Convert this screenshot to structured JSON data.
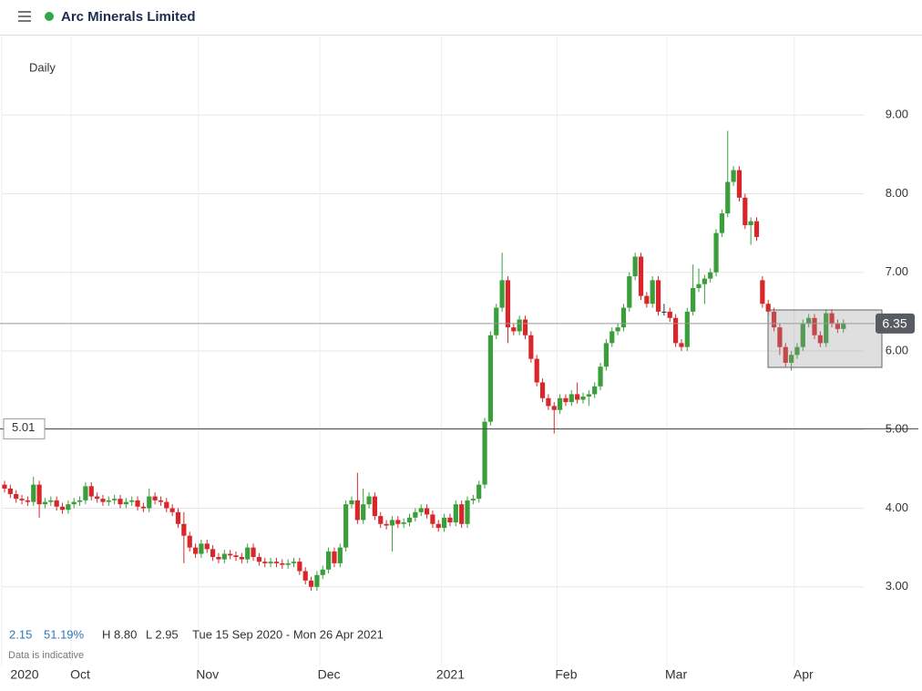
{
  "header": {
    "title": "Arc Minerals Limited"
  },
  "chart_data": {
    "type": "candlestick",
    "interval": "Daily",
    "up_color": "#3a9e3a",
    "down_color": "#d9262b",
    "grid": true,
    "ylim": [
      2.0,
      10.0
    ],
    "yticks": [
      {
        "value": 3,
        "label": "3.00"
      },
      {
        "value": 4,
        "label": "4.00"
      },
      {
        "value": 5,
        "label": "5.00"
      },
      {
        "value": 6,
        "label": "6.00"
      },
      {
        "value": 7,
        "label": "7.00"
      },
      {
        "value": 8,
        "label": "8.00"
      },
      {
        "value": 9,
        "label": "9.00"
      }
    ],
    "xticks": [
      {
        "value": 0,
        "label": "2020"
      },
      {
        "value": 12,
        "label": "Oct"
      },
      {
        "value": 34,
        "label": "Nov"
      },
      {
        "value": 55,
        "label": "Dec"
      },
      {
        "value": 76,
        "label": "2021"
      },
      {
        "value": 96,
        "label": "Feb"
      },
      {
        "value": 115,
        "label": "Mar"
      },
      {
        "value": 137,
        "label": "Apr"
      }
    ],
    "last_price": 6.35,
    "hline": 5.01,
    "open": [
      4.3,
      4.25,
      4.18,
      4.12,
      4.1,
      4.08,
      4.3,
      4.05,
      4.08,
      4.1,
      4.02,
      3.98,
      4.05,
      4.08,
      4.1,
      4.28,
      4.15,
      4.12,
      4.08,
      4.1,
      4.12,
      4.05,
      4.08,
      4.1,
      4.02,
      4.0,
      4.15,
      4.1,
      4.08,
      4.0,
      3.95,
      3.8,
      3.65,
      3.5,
      3.42,
      3.55,
      3.48,
      3.38,
      3.35,
      3.42,
      3.4,
      3.38,
      3.35,
      3.5,
      3.38,
      3.32,
      3.3,
      3.32,
      3.3,
      3.28,
      3.3,
      3.32,
      3.2,
      3.08,
      3.0,
      3.15,
      3.22,
      3.45,
      3.3,
      3.5,
      4.05,
      4.1,
      3.85,
      4.05,
      4.15,
      3.9,
      3.8,
      3.78,
      3.85,
      3.8,
      3.82,
      3.88,
      3.95,
      4.0,
      3.92,
      3.8,
      3.75,
      3.88,
      3.82,
      4.05,
      3.8,
      4.1,
      4.12,
      4.3,
      5.1,
      6.2,
      6.55,
      6.9,
      6.3,
      6.25,
      6.4,
      6.2,
      5.9,
      5.6,
      5.4,
      5.3,
      5.25,
      5.4,
      5.35,
      5.45,
      5.38,
      5.42,
      5.45,
      5.55,
      5.8,
      6.1,
      6.25,
      6.3,
      6.55,
      6.95,
      7.2,
      6.7,
      6.6,
      6.9,
      6.5,
      6.5,
      6.42,
      6.1,
      6.05,
      6.5,
      6.8,
      6.85,
      6.92,
      7.0,
      7.5,
      7.75,
      8.15,
      8.3,
      7.95,
      7.6,
      7.65,
      6.9,
      6.6,
      6.5,
      6.3,
      6.05,
      5.85,
      5.95,
      6.05,
      6.35,
      6.42,
      6.2,
      6.1,
      6.48,
      6.35,
      6.28
    ],
    "high": [
      4.35,
      4.3,
      4.23,
      4.17,
      4.15,
      4.4,
      4.35,
      4.13,
      4.15,
      4.15,
      4.07,
      4.1,
      4.13,
      4.15,
      4.33,
      4.33,
      4.2,
      4.17,
      4.15,
      4.17,
      4.17,
      4.13,
      4.15,
      4.15,
      4.07,
      4.25,
      4.2,
      4.15,
      4.13,
      4.05,
      4.0,
      3.95,
      3.7,
      3.55,
      3.6,
      3.6,
      3.53,
      3.43,
      3.47,
      3.47,
      3.45,
      3.43,
      3.55,
      3.55,
      3.43,
      3.37,
      3.37,
      3.37,
      3.35,
      3.35,
      3.37,
      3.37,
      3.25,
      3.13,
      3.2,
      3.27,
      3.5,
      3.5,
      3.55,
      4.1,
      4.15,
      4.45,
      4.25,
      4.2,
      4.2,
      3.95,
      3.85,
      3.9,
      3.9,
      3.87,
      3.93,
      4.0,
      4.05,
      4.05,
      3.97,
      3.85,
      3.93,
      3.93,
      4.1,
      4.1,
      4.15,
      4.17,
      4.35,
      5.15,
      6.25,
      6.6,
      7.25,
      6.95,
      6.35,
      6.45,
      6.45,
      6.25,
      5.95,
      5.65,
      5.45,
      5.35,
      5.45,
      5.45,
      5.5,
      5.6,
      5.47,
      5.5,
      5.6,
      5.85,
      6.15,
      6.3,
      6.35,
      6.6,
      7.0,
      7.25,
      7.25,
      6.75,
      6.95,
      6.95,
      6.6,
      6.55,
      6.47,
      6.15,
      6.55,
      7.1,
      7.05,
      6.97,
      7.05,
      7.55,
      7.8,
      8.8,
      8.35,
      8.35,
      8.0,
      7.7,
      7.7,
      6.95,
      6.65,
      6.55,
      6.35,
      6.1,
      6.0,
      6.1,
      6.4,
      6.47,
      6.47,
      6.25,
      6.53,
      6.53,
      6.4,
      6.4
    ],
    "low": [
      4.2,
      4.13,
      4.07,
      4.05,
      4.03,
      4.03,
      3.88,
      4.0,
      4.03,
      3.97,
      3.93,
      3.93,
      4.0,
      4.03,
      4.05,
      4.1,
      4.07,
      4.03,
      4.03,
      4.05,
      4.0,
      4.0,
      4.03,
      3.97,
      3.95,
      3.95,
      4.05,
      4.03,
      3.95,
      3.9,
      3.75,
      3.3,
      3.45,
      3.37,
      3.37,
      3.43,
      3.33,
      3.3,
      3.3,
      3.35,
      3.33,
      3.3,
      3.3,
      3.33,
      3.27,
      3.25,
      3.25,
      3.25,
      3.23,
      3.23,
      3.25,
      3.15,
      3.03,
      2.95,
      2.95,
      3.1,
      3.17,
      3.25,
      3.25,
      3.45,
      4.0,
      3.8,
      3.8,
      4.0,
      3.85,
      3.75,
      3.73,
      3.45,
      3.75,
      3.75,
      3.77,
      3.83,
      3.9,
      3.87,
      3.75,
      3.7,
      3.7,
      3.77,
      3.77,
      3.75,
      3.75,
      4.05,
      4.07,
      4.25,
      5.05,
      6.15,
      6.5,
      6.1,
      6.2,
      6.2,
      6.15,
      5.85,
      5.55,
      5.35,
      5.25,
      4.95,
      5.2,
      5.3,
      5.3,
      5.33,
      5.33,
      5.3,
      5.4,
      5.5,
      5.75,
      6.05,
      6.2,
      6.25,
      6.5,
      6.9,
      6.65,
      6.55,
      6.55,
      6.45,
      6.45,
      6.37,
      6.05,
      6.0,
      6.0,
      6.45,
      6.75,
      6.6,
      6.87,
      6.95,
      7.45,
      7.7,
      8.1,
      7.9,
      7.55,
      7.35,
      7.4,
      6.55,
      6.45,
      6.25,
      5.95,
      5.8,
      5.75,
      5.9,
      6.0,
      6.3,
      6.15,
      6.05,
      6.05,
      6.3,
      6.23,
      6.23
    ],
    "close": [
      4.25,
      4.18,
      4.12,
      4.1,
      4.08,
      4.3,
      4.05,
      4.08,
      4.1,
      4.02,
      3.98,
      4.05,
      4.08,
      4.1,
      4.28,
      4.15,
      4.12,
      4.08,
      4.1,
      4.12,
      4.05,
      4.08,
      4.1,
      4.02,
      4.0,
      4.15,
      4.1,
      4.08,
      4.0,
      3.95,
      3.8,
      3.65,
      3.5,
      3.42,
      3.55,
      3.48,
      3.38,
      3.35,
      3.42,
      3.4,
      3.38,
      3.35,
      3.5,
      3.38,
      3.32,
      3.3,
      3.32,
      3.3,
      3.28,
      3.3,
      3.32,
      3.2,
      3.08,
      3.0,
      3.15,
      3.22,
      3.45,
      3.3,
      3.5,
      4.05,
      4.1,
      3.85,
      4.05,
      4.15,
      3.9,
      3.8,
      3.78,
      3.85,
      3.8,
      3.82,
      3.88,
      3.95,
      4.0,
      3.92,
      3.8,
      3.75,
      3.88,
      3.82,
      4.05,
      3.8,
      4.1,
      4.12,
      4.3,
      5.1,
      6.2,
      6.55,
      6.9,
      6.3,
      6.25,
      6.4,
      6.2,
      5.9,
      5.6,
      5.4,
      5.3,
      5.25,
      5.4,
      5.35,
      5.45,
      5.38,
      5.42,
      5.45,
      5.55,
      5.8,
      6.1,
      6.25,
      6.3,
      6.55,
      6.95,
      7.2,
      6.7,
      6.6,
      6.9,
      6.5,
      6.5,
      6.42,
      6.1,
      6.05,
      6.5,
      6.8,
      6.85,
      6.92,
      7.0,
      7.5,
      7.75,
      8.15,
      8.3,
      7.95,
      7.6,
      7.65,
      7.45,
      6.6,
      6.5,
      6.3,
      6.05,
      5.85,
      5.95,
      6.05,
      6.35,
      6.42,
      6.2,
      6.1,
      6.48,
      6.35,
      6.28,
      6.35
    ]
  },
  "stats": {
    "change": "2.15",
    "change_pct": "51.19%",
    "high": "H 8.80",
    "low": "L 2.95",
    "range": "Tue 15 Sep 2020 - Mon 26 Apr 2021",
    "note": "Data is indicative"
  }
}
